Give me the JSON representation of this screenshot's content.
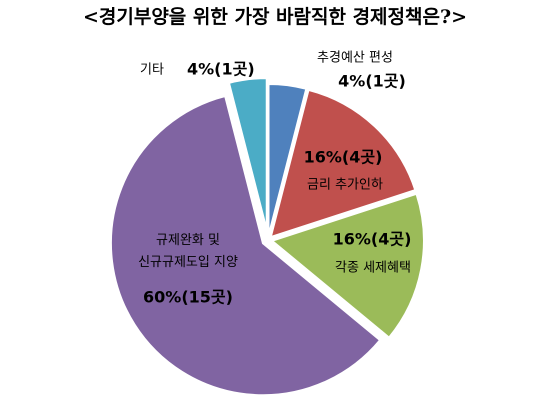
{
  "chart_data": {
    "type": "pie",
    "title": "<경기부양을 위한 가장 바람직한 경제정책은?>",
    "categories": [
      "추경예산 편성",
      "금리 추가인하",
      "각종 세제혜택",
      "규제완화 및\n신규규제도입 지양",
      "기타"
    ],
    "values": [
      4,
      16,
      16,
      60,
      4
    ],
    "value_labels": [
      "4%(1곳)",
      "16%(4곳)",
      "16%(4곳)",
      "60%(15곳)",
      "4%(1곳)"
    ],
    "colors": [
      "#4f81bd",
      "#c0504d",
      "#9bbb59",
      "#8064a2",
      "#4bacc6"
    ]
  }
}
